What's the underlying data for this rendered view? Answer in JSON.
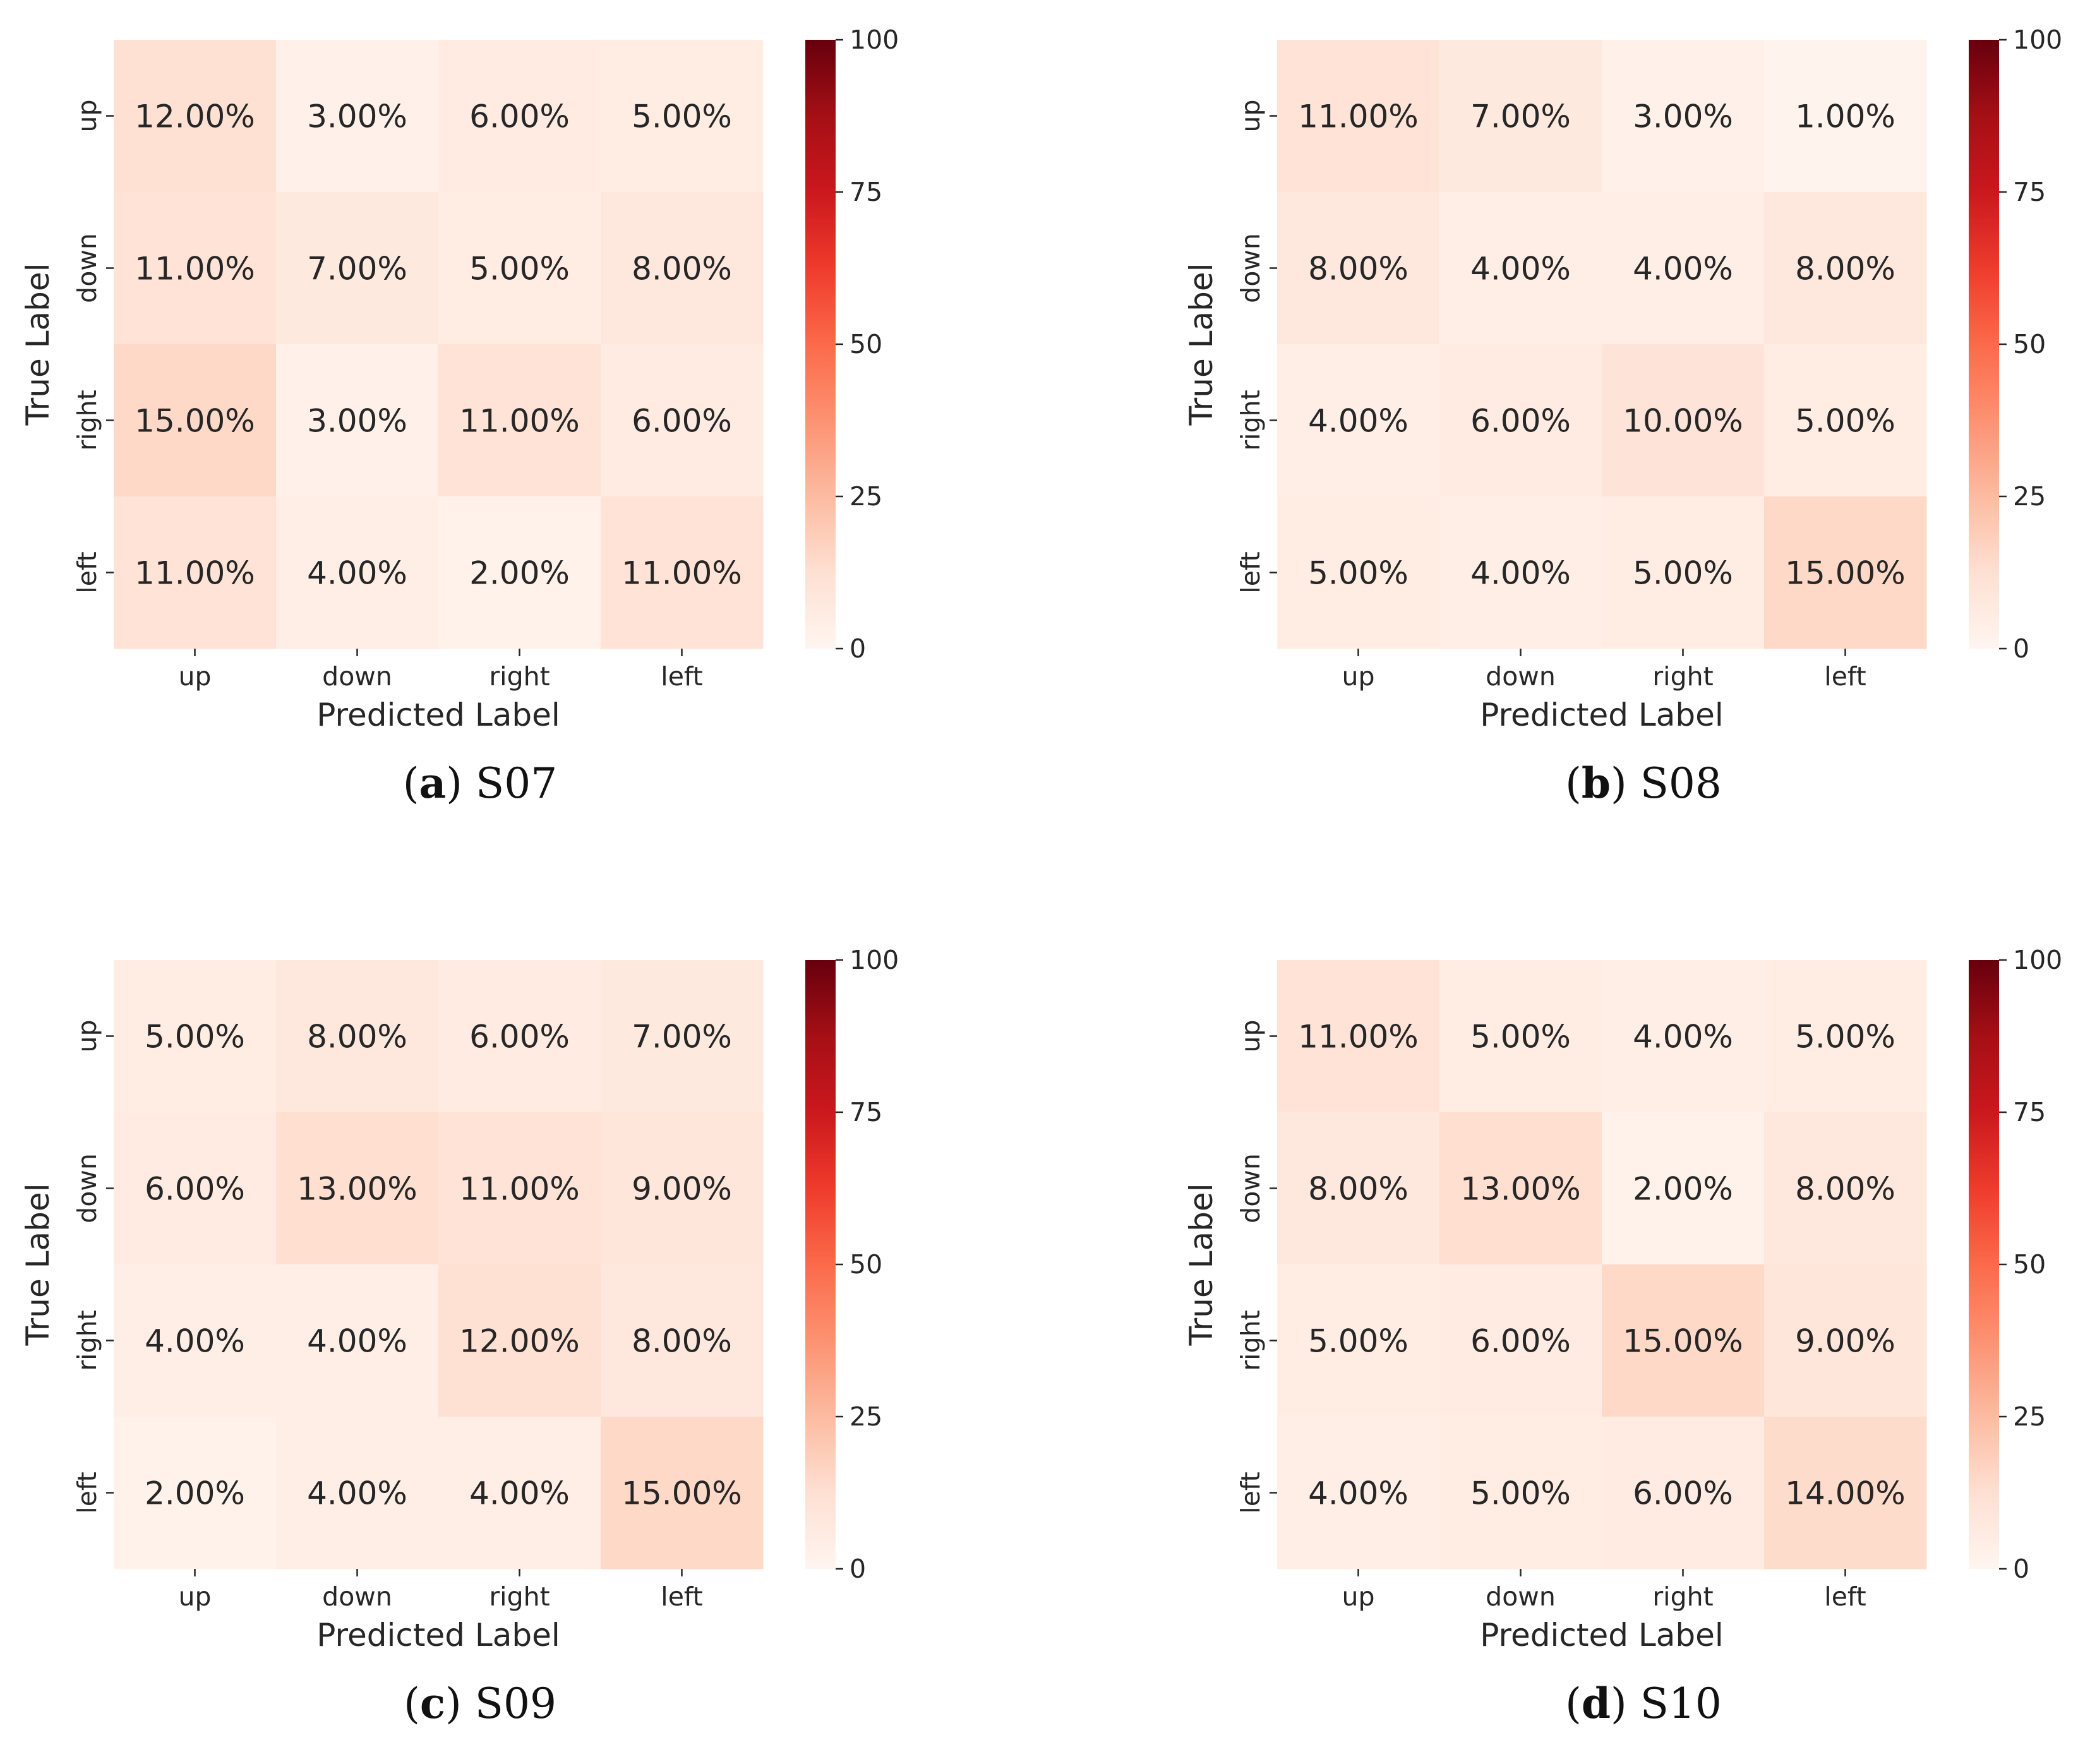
{
  "chart_data": [
    {
      "type": "heatmap",
      "panel_label": "a",
      "subject": "S07",
      "xlabel": "Predicted Label",
      "ylabel": "True Label",
      "x_categories": [
        "up",
        "down",
        "right",
        "left"
      ],
      "y_categories": [
        "up",
        "down",
        "right",
        "left"
      ],
      "values": [
        [
          12,
          3,
          6,
          5
        ],
        [
          11,
          7,
          5,
          8
        ],
        [
          15,
          3,
          11,
          6
        ],
        [
          11,
          4,
          2,
          11
        ]
      ],
      "cell_labels": [
        [
          "12.00%",
          "3.00%",
          "6.00%",
          "5.00%"
        ],
        [
          "11.00%",
          "7.00%",
          "5.00%",
          "8.00%"
        ],
        [
          "15.00%",
          "3.00%",
          "11.00%",
          "6.00%"
        ],
        [
          "11.00%",
          "4.00%",
          "2.00%",
          "11.00%"
        ]
      ],
      "colorbar": {
        "min": 0,
        "max": 100,
        "ticks": [
          0,
          25,
          50,
          75,
          100
        ],
        "colormap": "Reds"
      }
    },
    {
      "type": "heatmap",
      "panel_label": "b",
      "subject": "S08",
      "xlabel": "Predicted Label",
      "ylabel": "True Label",
      "x_categories": [
        "up",
        "down",
        "right",
        "left"
      ],
      "y_categories": [
        "up",
        "down",
        "right",
        "left"
      ],
      "values": [
        [
          11,
          7,
          3,
          1
        ],
        [
          8,
          4,
          4,
          8
        ],
        [
          4,
          6,
          10,
          5
        ],
        [
          5,
          4,
          5,
          15
        ]
      ],
      "cell_labels": [
        [
          "11.00%",
          "7.00%",
          "3.00%",
          "1.00%"
        ],
        [
          "8.00%",
          "4.00%",
          "4.00%",
          "8.00%"
        ],
        [
          "4.00%",
          "6.00%",
          "10.00%",
          "5.00%"
        ],
        [
          "5.00%",
          "4.00%",
          "5.00%",
          "15.00%"
        ]
      ],
      "colorbar": {
        "min": 0,
        "max": 100,
        "ticks": [
          0,
          25,
          50,
          75,
          100
        ],
        "colormap": "Reds"
      }
    },
    {
      "type": "heatmap",
      "panel_label": "c",
      "subject": "S09",
      "xlabel": "Predicted Label",
      "ylabel": "True Label",
      "x_categories": [
        "up",
        "down",
        "right",
        "left"
      ],
      "y_categories": [
        "up",
        "down",
        "right",
        "left"
      ],
      "values": [
        [
          5,
          8,
          6,
          7
        ],
        [
          6,
          13,
          11,
          9
        ],
        [
          4,
          4,
          12,
          8
        ],
        [
          2,
          4,
          4,
          15
        ]
      ],
      "cell_labels": [
        [
          "5.00%",
          "8.00%",
          "6.00%",
          "7.00%"
        ],
        [
          "6.00%",
          "13.00%",
          "11.00%",
          "9.00%"
        ],
        [
          "4.00%",
          "4.00%",
          "12.00%",
          "8.00%"
        ],
        [
          "2.00%",
          "4.00%",
          "4.00%",
          "15.00%"
        ]
      ],
      "colorbar": {
        "min": 0,
        "max": 100,
        "ticks": [
          0,
          25,
          50,
          75,
          100
        ],
        "colormap": "Reds"
      }
    },
    {
      "type": "heatmap",
      "panel_label": "d",
      "subject": "S10",
      "xlabel": "Predicted Label",
      "ylabel": "True Label",
      "x_categories": [
        "up",
        "down",
        "right",
        "left"
      ],
      "y_categories": [
        "up",
        "down",
        "right",
        "left"
      ],
      "values": [
        [
          11,
          5,
          4,
          5
        ],
        [
          8,
          13,
          2,
          8
        ],
        [
          5,
          6,
          15,
          9
        ],
        [
          4,
          5,
          6,
          14
        ]
      ],
      "cell_labels": [
        [
          "11.00%",
          "5.00%",
          "4.00%",
          "5.00%"
        ],
        [
          "8.00%",
          "13.00%",
          "2.00%",
          "8.00%"
        ],
        [
          "5.00%",
          "6.00%",
          "15.00%",
          "9.00%"
        ],
        [
          "4.00%",
          "5.00%",
          "6.00%",
          "14.00%"
        ]
      ],
      "colorbar": {
        "min": 0,
        "max": 100,
        "ticks": [
          0,
          25,
          50,
          75,
          100
        ],
        "colormap": "Reds"
      }
    }
  ]
}
